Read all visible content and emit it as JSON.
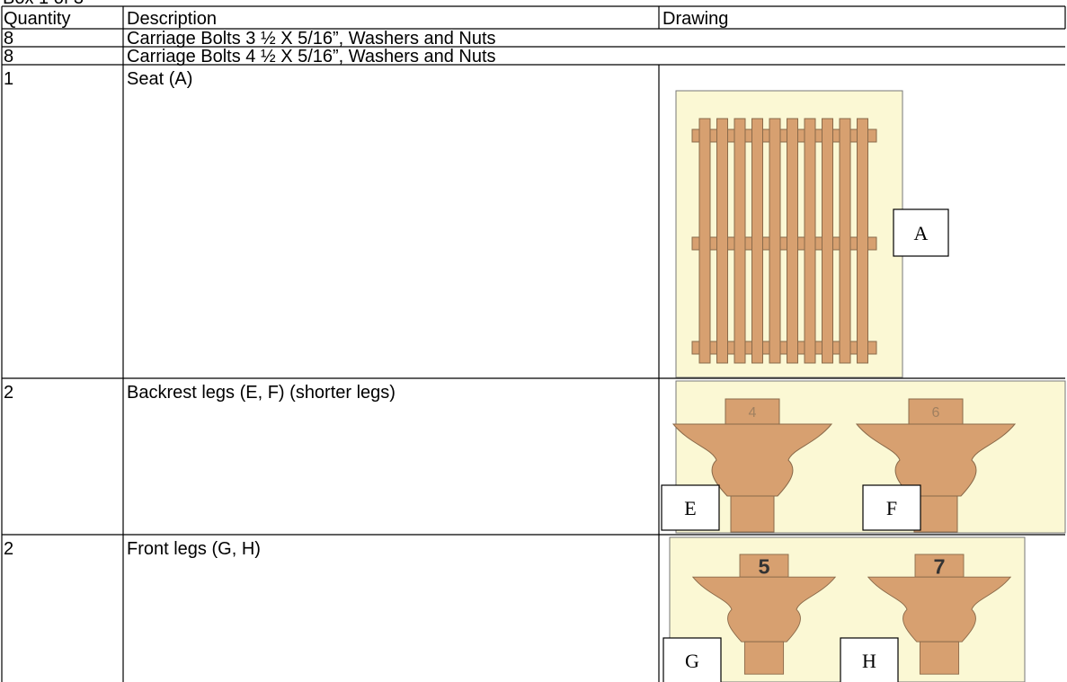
{
  "header": {
    "title": "Box 1 of 3"
  },
  "table": {
    "columns": [
      "Quantity",
      "Description",
      "Drawing"
    ],
    "rows": [
      {
        "quantity": "8",
        "description": "Carriage Bolts 3 ½  X 5/16”, Washers and Nuts"
      },
      {
        "quantity": "8",
        "description": "Carriage Bolts 4 ½  X 5/16”, Washers and Nuts"
      },
      {
        "quantity": "1",
        "description": "Seat (A)",
        "drawing_labels": [
          "A"
        ]
      },
      {
        "quantity": "2",
        "description": "Backrest legs (E, F) (shorter legs)",
        "drawing_labels": [
          "E",
          "F"
        ],
        "part_numbers": [
          "4",
          "6"
        ]
      },
      {
        "quantity": "2",
        "description": "Front legs (G, H)",
        "drawing_labels": [
          "G",
          "H"
        ],
        "part_numbers": [
          "5",
          "7"
        ]
      }
    ]
  }
}
